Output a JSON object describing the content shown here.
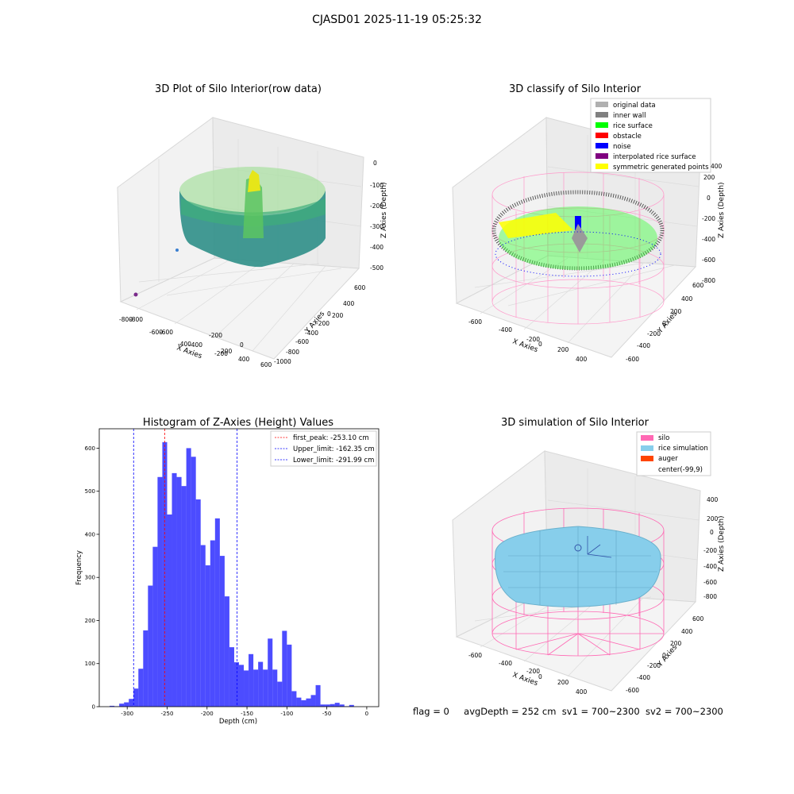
{
  "suptitle": "CJASD01 2025-11-19 05:25:32",
  "status_line": {
    "flag": "flag = 0",
    "avg_depth": "avgDepth = 252 cm",
    "sv1": "sv1 = 700~2300",
    "sv2": "sv2 = 700~2300"
  },
  "panels": {
    "raw": {
      "title": "3D Plot of Silo Interior(row data)",
      "xlabel": "X Axies",
      "ylabel": "Y Axies",
      "zlabel": "Z Axies (Depth)",
      "xticks": [
        "-800",
        "-600",
        "-400",
        "-200",
        "0",
        "200",
        "400",
        "600"
      ],
      "yticks": [
        "600",
        "400",
        "200",
        "0",
        "-200",
        "-400",
        "-600",
        "-800",
        "-1000"
      ],
      "zticks": [
        "0",
        "-100",
        "-200",
        "-300",
        "-400",
        "-500"
      ]
    },
    "classify": {
      "title": "3D classify of Silo Interior",
      "xlabel": "X Axies",
      "ylabel": "Y Axies",
      "zlabel": "Z Axies (Depth)",
      "xticks": [
        "-600",
        "-400",
        "-200",
        "0",
        "200",
        "400"
      ],
      "yticks": [
        "600",
        "400",
        "200",
        "0",
        "-200",
        "-400",
        "-600"
      ],
      "zticks": [
        "200",
        "0",
        "-200",
        "-400",
        "-600",
        "-800"
      ],
      "zticks_top": "400",
      "legend": [
        {
          "label": "original data",
          "color": "#b0b0b0"
        },
        {
          "label": "inner wall",
          "color": "#808080"
        },
        {
          "label": "rice surface",
          "color": "#00ff00"
        },
        {
          "label": "obstacle",
          "color": "#ff0000"
        },
        {
          "label": "noise",
          "color": "#0000ff"
        },
        {
          "label": "interpolated rice surface",
          "color": "#800080"
        },
        {
          "label": "symmetric generated points",
          "color": "#ffff00"
        }
      ]
    },
    "simulation": {
      "title": "3D simulation of Silo Interior",
      "xlabel": "X Axies",
      "ylabel": "Y Axies",
      "zlabel": "Z Axies (Depth)",
      "xticks": [
        "-600",
        "-400",
        "-200",
        "0",
        "200",
        "400"
      ],
      "yticks": [
        "600",
        "400",
        "200",
        "0",
        "-200",
        "-400",
        "-600"
      ],
      "zticks": [
        "400",
        "200",
        "0",
        "-200",
        "-400",
        "-600",
        "-800"
      ],
      "legend": [
        {
          "label": "silo",
          "color": "#ff69b4"
        },
        {
          "label": "rice simulation",
          "color": "#87ceeb"
        },
        {
          "label": "auger",
          "color": "#ff4500"
        },
        {
          "label": "center(-99,9)",
          "color": "none"
        }
      ]
    }
  },
  "chart_data": {
    "type": "bar",
    "title": "Histogram of Z-Axies (Height) Values",
    "xlabel": "Depth (cm)",
    "ylabel": "Frequency",
    "xlim": [
      -335,
      15
    ],
    "ylim": [
      0,
      645
    ],
    "xticks": [
      -300,
      -250,
      -200,
      -150,
      -100,
      -50,
      0
    ],
    "yticks": [
      0,
      100,
      200,
      300,
      400,
      500,
      600
    ],
    "bar_color": "#0000ff",
    "bins": [
      {
        "x0": -322,
        "x1": -316,
        "v": 2
      },
      {
        "x0": -316,
        "x1": -310,
        "v": 1
      },
      {
        "x0": -310,
        "x1": -304,
        "v": 7
      },
      {
        "x0": -304,
        "x1": -298,
        "v": 10
      },
      {
        "x0": -298,
        "x1": -292,
        "v": 18
      },
      {
        "x0": -292,
        "x1": -286,
        "v": 42
      },
      {
        "x0": -286,
        "x1": -280,
        "v": 88
      },
      {
        "x0": -280,
        "x1": -274,
        "v": 177
      },
      {
        "x0": -274,
        "x1": -268,
        "v": 281
      },
      {
        "x0": -268,
        "x1": -262,
        "v": 371
      },
      {
        "x0": -262,
        "x1": -256,
        "v": 533
      },
      {
        "x0": -256,
        "x1": -250,
        "v": 614
      },
      {
        "x0": -250,
        "x1": -244,
        "v": 446
      },
      {
        "x0": -244,
        "x1": -238,
        "v": 542
      },
      {
        "x0": -238,
        "x1": -232,
        "v": 533
      },
      {
        "x0": -232,
        "x1": -226,
        "v": 512
      },
      {
        "x0": -226,
        "x1": -220,
        "v": 600
      },
      {
        "x0": -220,
        "x1": -214,
        "v": 580
      },
      {
        "x0": -214,
        "x1": -208,
        "v": 481
      },
      {
        "x0": -208,
        "x1": -202,
        "v": 375
      },
      {
        "x0": -202,
        "x1": -196,
        "v": 328
      },
      {
        "x0": -196,
        "x1": -190,
        "v": 386
      },
      {
        "x0": -190,
        "x1": -184,
        "v": 437
      },
      {
        "x0": -184,
        "x1": -178,
        "v": 350
      },
      {
        "x0": -178,
        "x1": -172,
        "v": 256
      },
      {
        "x0": -172,
        "x1": -166,
        "v": 138
      },
      {
        "x0": -166,
        "x1": -160,
        "v": 103
      },
      {
        "x0": -160,
        "x1": -154,
        "v": 97
      },
      {
        "x0": -154,
        "x1": -148,
        "v": 84
      },
      {
        "x0": -148,
        "x1": -142,
        "v": 122
      },
      {
        "x0": -142,
        "x1": -136,
        "v": 86
      },
      {
        "x0": -136,
        "x1": -130,
        "v": 104
      },
      {
        "x0": -130,
        "x1": -124,
        "v": 86
      },
      {
        "x0": -124,
        "x1": -118,
        "v": 158
      },
      {
        "x0": -118,
        "x1": -112,
        "v": 86
      },
      {
        "x0": -112,
        "x1": -106,
        "v": 58
      },
      {
        "x0": -106,
        "x1": -100,
        "v": 176
      },
      {
        "x0": -100,
        "x1": -94,
        "v": 144
      },
      {
        "x0": -94,
        "x1": -88,
        "v": 36
      },
      {
        "x0": -88,
        "x1": -82,
        "v": 21
      },
      {
        "x0": -82,
        "x1": -76,
        "v": 15
      },
      {
        "x0": -76,
        "x1": -70,
        "v": 19
      },
      {
        "x0": -70,
        "x1": -64,
        "v": 27
      },
      {
        "x0": -64,
        "x1": -58,
        "v": 50
      },
      {
        "x0": -58,
        "x1": -52,
        "v": 5
      },
      {
        "x0": -52,
        "x1": -46,
        "v": 5
      },
      {
        "x0": -46,
        "x1": -40,
        "v": 6
      },
      {
        "x0": -40,
        "x1": -34,
        "v": 9
      },
      {
        "x0": -34,
        "x1": -28,
        "v": 5
      },
      {
        "x0": -28,
        "x1": -22,
        "v": 1
      },
      {
        "x0": -22,
        "x1": -16,
        "v": 4
      }
    ],
    "vlines": [
      {
        "x": -253.1,
        "color": "#ff0000",
        "label": "first_peak: -253.10 cm"
      },
      {
        "x": -162.35,
        "color": "#0000ff",
        "label": "Upper_limit: -162.35 cm"
      },
      {
        "x": -291.99,
        "color": "#0000ff",
        "label": "Lower_limit: -291.99 cm"
      }
    ],
    "legend_position": "upper right",
    "grid": false
  }
}
